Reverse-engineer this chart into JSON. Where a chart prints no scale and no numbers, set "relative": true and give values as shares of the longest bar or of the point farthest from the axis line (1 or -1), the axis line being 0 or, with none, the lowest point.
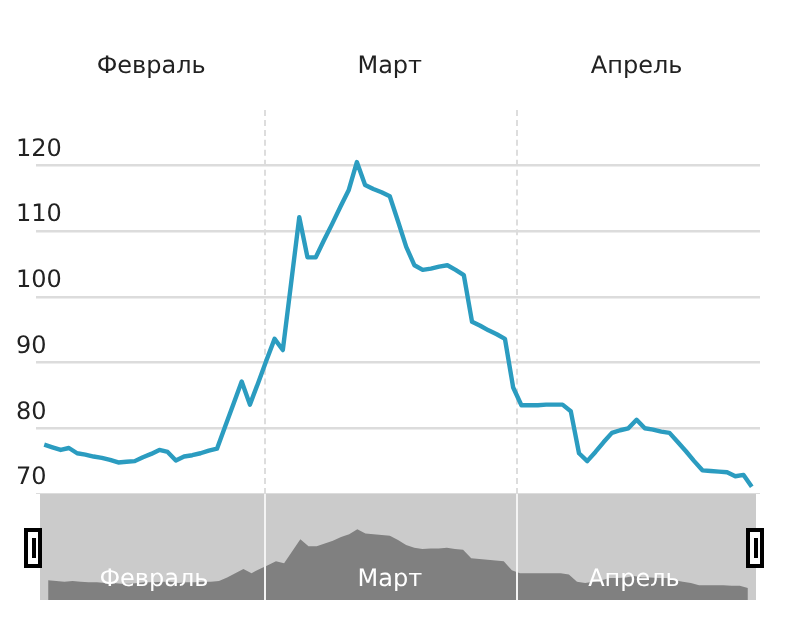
{
  "chart_data": [
    {
      "type": "line",
      "categories": [
        null,
        null,
        null,
        null,
        null,
        null,
        null,
        null,
        null,
        null,
        null,
        null,
        null,
        null,
        "Февраль",
        null,
        null,
        null,
        null,
        null,
        null,
        null,
        null,
        null,
        null,
        null,
        null,
        null,
        null,
        null,
        null,
        null,
        null,
        null,
        null,
        null,
        null,
        null,
        null,
        null,
        null,
        null,
        null,
        "Март",
        null,
        null,
        null,
        null,
        null,
        null,
        null,
        null,
        null,
        null,
        null,
        null,
        null,
        null,
        null,
        null,
        null,
        null,
        null,
        null,
        null,
        null,
        null,
        null,
        null,
        null,
        null,
        null,
        null,
        "Апрель",
        null,
        null,
        null,
        null,
        null,
        null,
        null,
        null,
        null,
        null,
        null,
        null,
        null,
        null,
        null
      ],
      "series": [
        {
          "color": "#2b9cc0",
          "values": [
            null,
            77.5,
            77.1,
            76.7,
            77.0,
            76.2,
            76.0,
            75.7,
            75.5,
            75.2,
            74.8,
            74.9,
            75.0,
            75.6,
            76.1,
            76.7,
            76.4,
            75.1,
            75.7,
            75.9,
            76.2,
            76.6,
            76.9,
            80.3,
            83.7,
            87.1,
            83.6,
            86.9,
            90.3,
            93.6,
            91.9,
            102.0,
            112.1,
            106.0,
            106.0,
            108.6,
            111.1,
            113.7,
            116.2,
            120.5,
            117.0,
            116.4,
            115.9,
            115.3,
            111.5,
            107.6,
            104.8,
            104.1,
            104.3,
            104.6,
            104.8,
            104.1,
            103.3,
            96.2,
            95.6,
            94.9,
            94.3,
            93.6,
            86.2,
            83.5,
            83.5,
            83.5,
            83.6,
            83.6,
            83.6,
            82.6,
            76.2,
            75.0,
            76.4,
            77.9,
            79.3,
            79.7,
            80.0,
            81.3,
            80.0,
            79.8,
            79.5,
            79.3,
            77.9,
            76.5,
            75.0,
            73.6,
            73.5,
            73.4,
            73.3,
            72.7,
            72.9,
            71.1,
            null
          ]
        }
      ],
      "ylim": [
        70,
        128
      ],
      "yticks": [
        70,
        80,
        90,
        100,
        110,
        120
      ],
      "grid": "y"
    },
    {
      "type": "area",
      "relative": true,
      "categories": [
        null,
        null,
        null,
        null,
        null,
        null,
        null,
        null,
        null,
        null,
        null,
        null,
        null,
        null,
        "Февраль",
        null,
        null,
        null,
        null,
        null,
        null,
        null,
        null,
        null,
        null,
        null,
        null,
        null,
        null,
        null,
        null,
        null,
        null,
        null,
        null,
        null,
        null,
        null,
        null,
        null,
        null,
        null,
        null,
        "Март",
        null,
        null,
        null,
        null,
        null,
        null,
        null,
        null,
        null,
        null,
        null,
        null,
        null,
        null,
        null,
        null,
        null,
        null,
        null,
        null,
        null,
        null,
        null,
        null,
        null,
        null,
        null,
        null,
        null,
        "Апрель",
        null,
        null,
        null,
        null,
        null,
        null,
        null,
        null,
        null,
        null,
        null,
        null,
        null,
        null,
        null
      ],
      "series": [
        {
          "color": "#808080",
          "values": [
            null,
            0.28,
            0.27,
            0.26,
            0.27,
            0.26,
            0.25,
            0.25,
            0.24,
            0.24,
            0.23,
            0.23,
            0.24,
            0.25,
            0.25,
            0.26,
            0.26,
            0.24,
            0.25,
            0.25,
            0.26,
            0.26,
            0.27,
            0.32,
            0.38,
            0.44,
            0.38,
            0.44,
            0.49,
            0.55,
            0.52,
            0.69,
            0.86,
            0.76,
            0.76,
            0.8,
            0.84,
            0.89,
            0.93,
            1,
            0.94,
            0.93,
            0.92,
            0.91,
            0.85,
            0.78,
            0.74,
            0.72,
            0.73,
            0.73,
            0.74,
            0.72,
            0.71,
            0.59,
            0.58,
            0.57,
            0.56,
            0.55,
            0.42,
            0.38,
            0.38,
            0.38,
            0.38,
            0.38,
            0.38,
            0.36,
            0.26,
            0.24,
            0.26,
            0.28,
            0.31,
            0.31,
            0.32,
            0.34,
            0.32,
            0.32,
            0.31,
            0.31,
            0.28,
            0.26,
            0.24,
            0.21,
            0.21,
            0.21,
            0.21,
            0.2,
            0.2,
            0.17,
            null
          ]
        }
      ]
    }
  ]
}
